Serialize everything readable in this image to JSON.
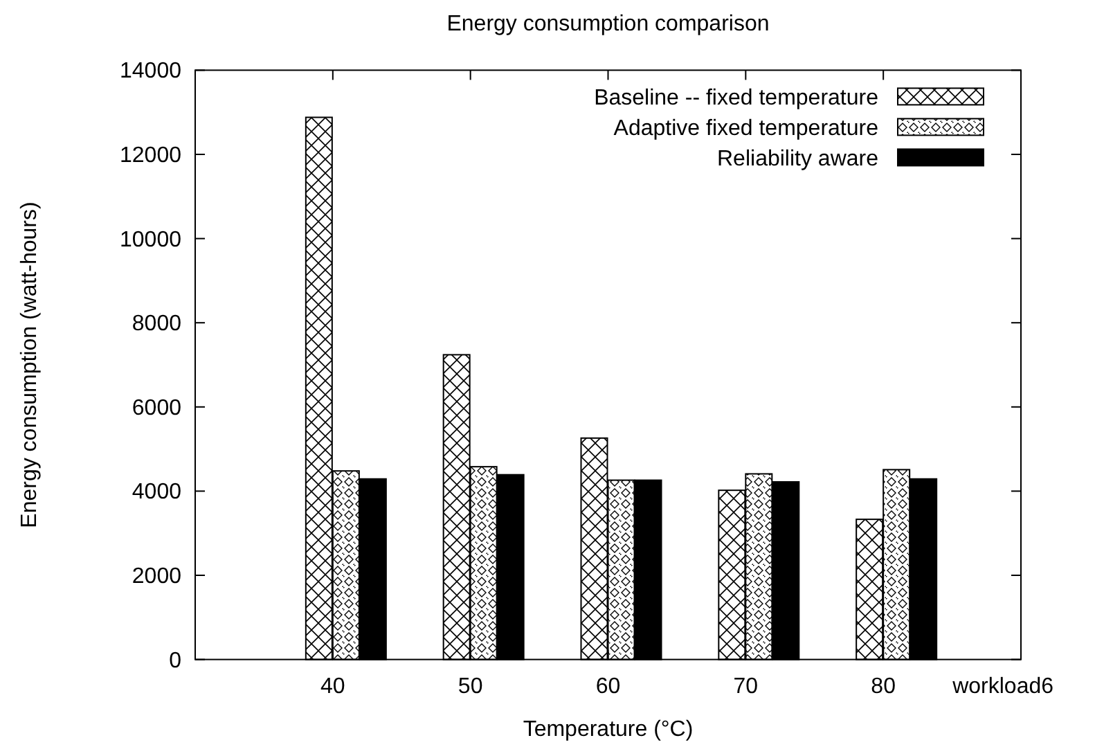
{
  "chart_data": {
    "type": "bar",
    "title": "Energy consumption comparison",
    "xlabel": "Temperature (°C)",
    "ylabel": "Energy consumption (watt-hours)",
    "categories": [
      "40",
      "50",
      "60",
      "70",
      "80"
    ],
    "series": [
      {
        "name": "Baseline -- fixed temperature",
        "color": "#000000",
        "values": [
          12880,
          7240,
          5260,
          4020,
          3330
        ]
      },
      {
        "name": "Adaptive fixed temperature",
        "color": "#000000",
        "values": [
          4480,
          4580,
          4260,
          4410,
          4510
        ]
      },
      {
        "name": "Reliability aware",
        "color": "#000000",
        "values": [
          4290,
          4390,
          4260,
          4220,
          4290
        ]
      }
    ],
    "ylim": [
      0,
      14000
    ],
    "yticks": [
      0,
      2000,
      4000,
      6000,
      8000,
      10000,
      12000,
      14000
    ],
    "annotations": [
      "workload6"
    ],
    "legend": "top right",
    "grid": false
  }
}
